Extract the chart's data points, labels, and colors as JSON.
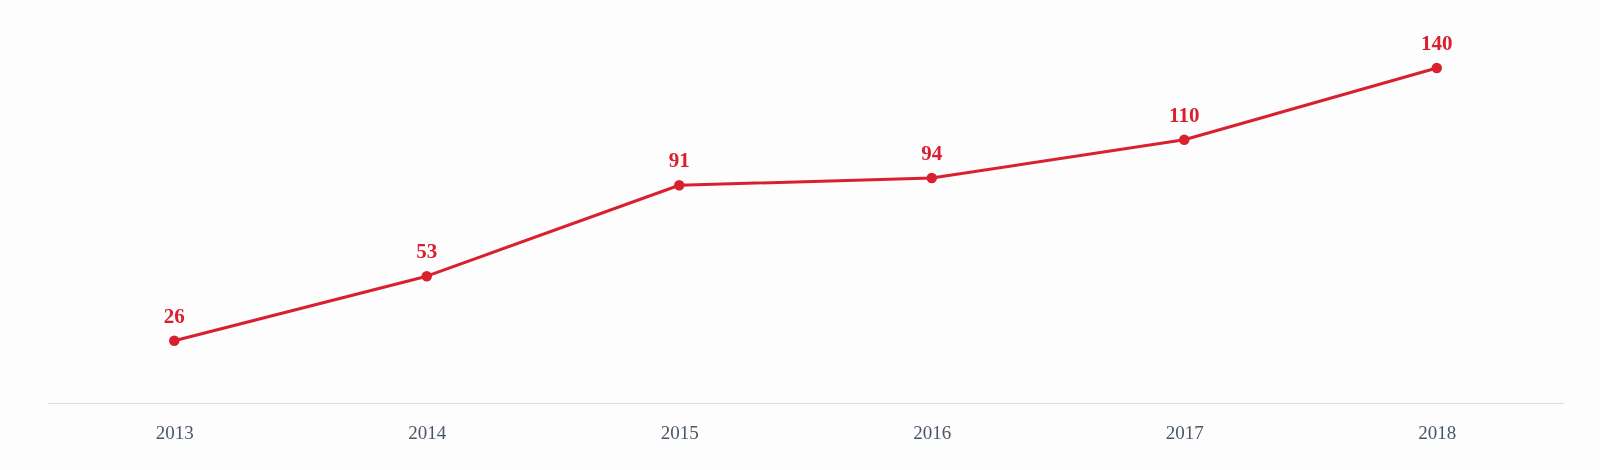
{
  "chart_data": {
    "type": "line",
    "categories": [
      "2013",
      "2014",
      "2015",
      "2016",
      "2017",
      "2018"
    ],
    "values": [
      26,
      53,
      91,
      94,
      110,
      140
    ],
    "color": "#d9202f",
    "data_labels": true,
    "marker": "circle",
    "line_style": "solid",
    "tick_labels": "x",
    "grid": false
  }
}
